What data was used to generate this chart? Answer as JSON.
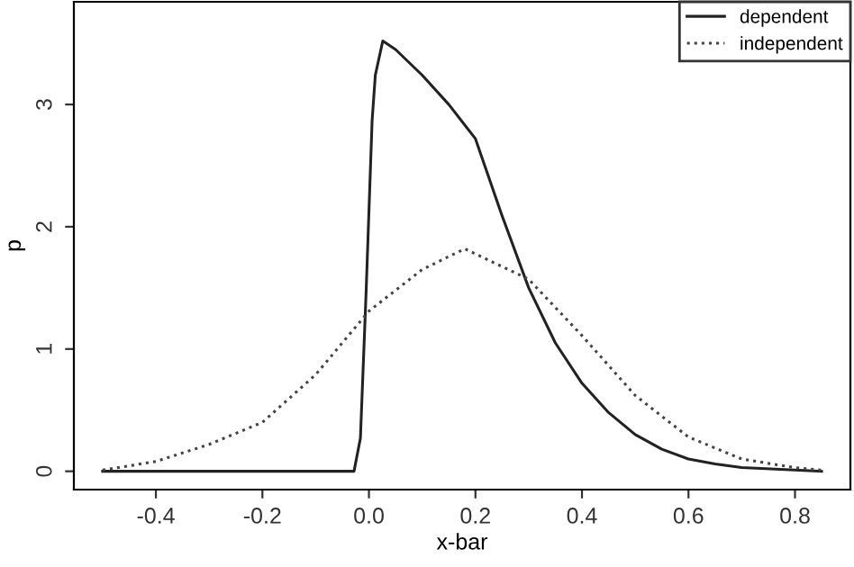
{
  "chart_data": {
    "type": "line",
    "xlabel": "x-bar",
    "ylabel": "p",
    "xlim": [
      -0.554,
      0.904
    ],
    "ylim": [
      -0.15,
      3.84
    ],
    "xticks": [
      {
        "value": -0.4,
        "label": "-0.4"
      },
      {
        "value": -0.2,
        "label": "-0.2"
      },
      {
        "value": 0,
        "label": "0.0"
      },
      {
        "value": 0.2,
        "label": "0.2"
      },
      {
        "value": 0.4,
        "label": "0.4"
      },
      {
        "value": 0.6,
        "label": "0.6"
      },
      {
        "value": 0.8,
        "label": "0.8"
      }
    ],
    "yticks": [
      0,
      1,
      2,
      3
    ],
    "grid": false,
    "legend": "top right",
    "series": [
      {
        "name": "dependent",
        "color": "#222222",
        "line_style": "solid",
        "x": [
          -0.5,
          -0.028,
          -0.016,
          -0.008,
          -0.005,
          0.006,
          0.012,
          0.026,
          0.05,
          0.1,
          0.15,
          0.2,
          0.25,
          0.3,
          0.35,
          0.4,
          0.45,
          0.5,
          0.55,
          0.6,
          0.65,
          0.7,
          0.8,
          0.85
        ],
        "values": [
          0,
          0,
          0.27,
          1.16,
          1.5,
          2.87,
          3.24,
          3.52,
          3.45,
          3.24,
          3.0,
          2.72,
          2.09,
          1.5,
          1.05,
          0.72,
          0.48,
          0.3,
          0.18,
          0.1,
          0.06,
          0.03,
          0.01,
          0
        ]
      },
      {
        "name": "independent",
        "color": "#444444",
        "line_style": "dotted",
        "x": [
          -0.5,
          -0.4,
          -0.3,
          -0.2,
          -0.1,
          0,
          0.1,
          0.18,
          0.3,
          0.4,
          0.5,
          0.6,
          0.7,
          0.8,
          0.85
        ],
        "values": [
          0.01,
          0.08,
          0.22,
          0.4,
          0.79,
          1.31,
          1.65,
          1.82,
          1.57,
          1.11,
          0.62,
          0.28,
          0.1,
          0.03,
          0.01
        ]
      }
    ]
  }
}
